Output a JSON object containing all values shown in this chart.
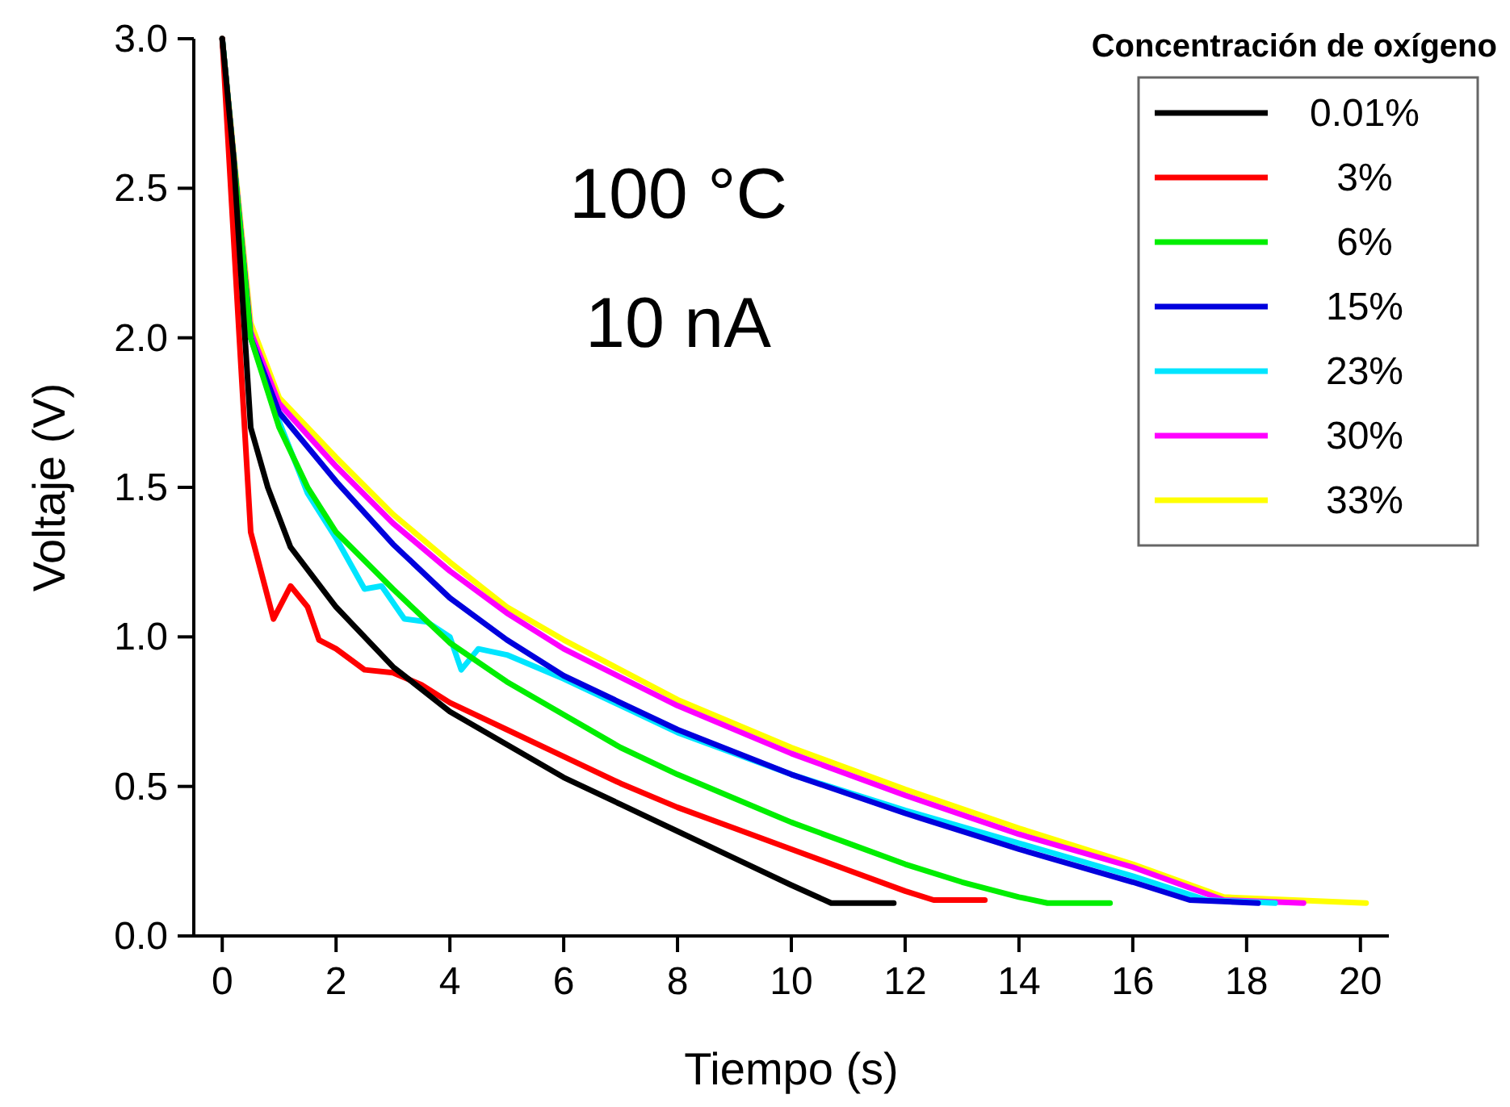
{
  "chart_data": {
    "type": "line",
    "xlabel": "Tiempo (s)",
    "ylabel": "Voltaje (V)",
    "legend_title": "Concentración de oxígeno",
    "legend": "top right",
    "grid": false,
    "line_style": "solid",
    "marker": "none",
    "annotations": [
      "100 °C",
      "10 nA"
    ],
    "xlim": [
      -0.5,
      20.5
    ],
    "xticks": [
      0,
      2,
      4,
      6,
      8,
      10,
      12,
      14,
      16,
      18,
      20
    ],
    "ylim": [
      0,
      3.0
    ],
    "yticks": [
      {
        "value": 0,
        "label": "0.0"
      },
      0.5,
      {
        "value": 1,
        "label": "1.0"
      },
      1.5,
      {
        "value": 2,
        "label": "2.0"
      },
      2.5,
      {
        "value": 3,
        "label": "3.0"
      }
    ],
    "series": [
      {
        "name": "0.01%",
        "color": "#000000",
        "x": [
          0,
          0.2,
          0.5,
          0.8,
          1.2,
          2,
          3,
          4,
          5,
          6,
          7,
          8,
          9,
          10,
          10.7,
          11.8
        ],
        "values": [
          3.0,
          2.6,
          1.7,
          1.5,
          1.3,
          1.1,
          0.9,
          0.75,
          0.64,
          0.53,
          0.44,
          0.35,
          0.26,
          0.17,
          0.11,
          0.11
        ]
      },
      {
        "name": "3%",
        "color": "#ff0000",
        "x": [
          0,
          0.3,
          0.5,
          0.9,
          1.2,
          1.5,
          1.7,
          2,
          2.5,
          3,
          3.5,
          4,
          5,
          6,
          7,
          8,
          9,
          10,
          11,
          12,
          12.5,
          13.4
        ],
        "values": [
          3.0,
          2.0,
          1.35,
          1.06,
          1.17,
          1.1,
          0.99,
          0.96,
          0.89,
          0.88,
          0.84,
          0.78,
          0.69,
          0.6,
          0.51,
          0.43,
          0.36,
          0.29,
          0.22,
          0.15,
          0.12,
          0.12
        ]
      },
      {
        "name": "6%",
        "color": "#00ee00",
        "x": [
          0,
          0.5,
          1,
          1.5,
          2,
          3,
          4,
          5,
          6,
          7,
          8,
          9,
          10,
          11,
          12,
          13,
          14,
          14.5,
          15.6
        ],
        "values": [
          3.0,
          2.0,
          1.7,
          1.5,
          1.35,
          1.16,
          0.98,
          0.85,
          0.74,
          0.63,
          0.54,
          0.46,
          0.38,
          0.31,
          0.24,
          0.18,
          0.13,
          0.11,
          0.11
        ]
      },
      {
        "name": "15%",
        "color": "#0000dd",
        "x": [
          0,
          0.5,
          1,
          2,
          3,
          4,
          5,
          6,
          8,
          10,
          12,
          14,
          16,
          17,
          18.2
        ],
        "values": [
          3.0,
          2.0,
          1.75,
          1.52,
          1.31,
          1.13,
          0.99,
          0.87,
          0.69,
          0.54,
          0.41,
          0.29,
          0.18,
          0.12,
          0.11
        ]
      },
      {
        "name": "23%",
        "color": "#00e5ff",
        "x": [
          0,
          0.5,
          1,
          1.5,
          2,
          2.5,
          2.8,
          3.2,
          3.6,
          4,
          4.2,
          4.5,
          5,
          6,
          8,
          10,
          12,
          14,
          16,
          17.3,
          18.5
        ],
        "values": [
          3.0,
          2.0,
          1.72,
          1.48,
          1.33,
          1.16,
          1.17,
          1.06,
          1.05,
          1.0,
          0.89,
          0.96,
          0.94,
          0.86,
          0.68,
          0.54,
          0.42,
          0.31,
          0.2,
          0.12,
          0.11
        ]
      },
      {
        "name": "30%",
        "color": "#ff00ff",
        "x": [
          0,
          0.5,
          1,
          2,
          3,
          4,
          5,
          6,
          8,
          10,
          12,
          14,
          16,
          17.6,
          19
        ],
        "values": [
          3.0,
          2.02,
          1.78,
          1.57,
          1.38,
          1.22,
          1.08,
          0.96,
          0.77,
          0.61,
          0.47,
          0.34,
          0.23,
          0.12,
          0.11
        ]
      },
      {
        "name": "33%",
        "color": "#ffff00",
        "x": [
          0,
          0.5,
          1,
          2,
          3,
          4,
          5,
          6,
          8,
          10,
          12,
          14,
          16,
          17.6,
          20.1
        ],
        "values": [
          3.0,
          2.05,
          1.8,
          1.6,
          1.41,
          1.25,
          1.1,
          0.99,
          0.79,
          0.63,
          0.49,
          0.36,
          0.24,
          0.13,
          0.11
        ]
      }
    ]
  }
}
